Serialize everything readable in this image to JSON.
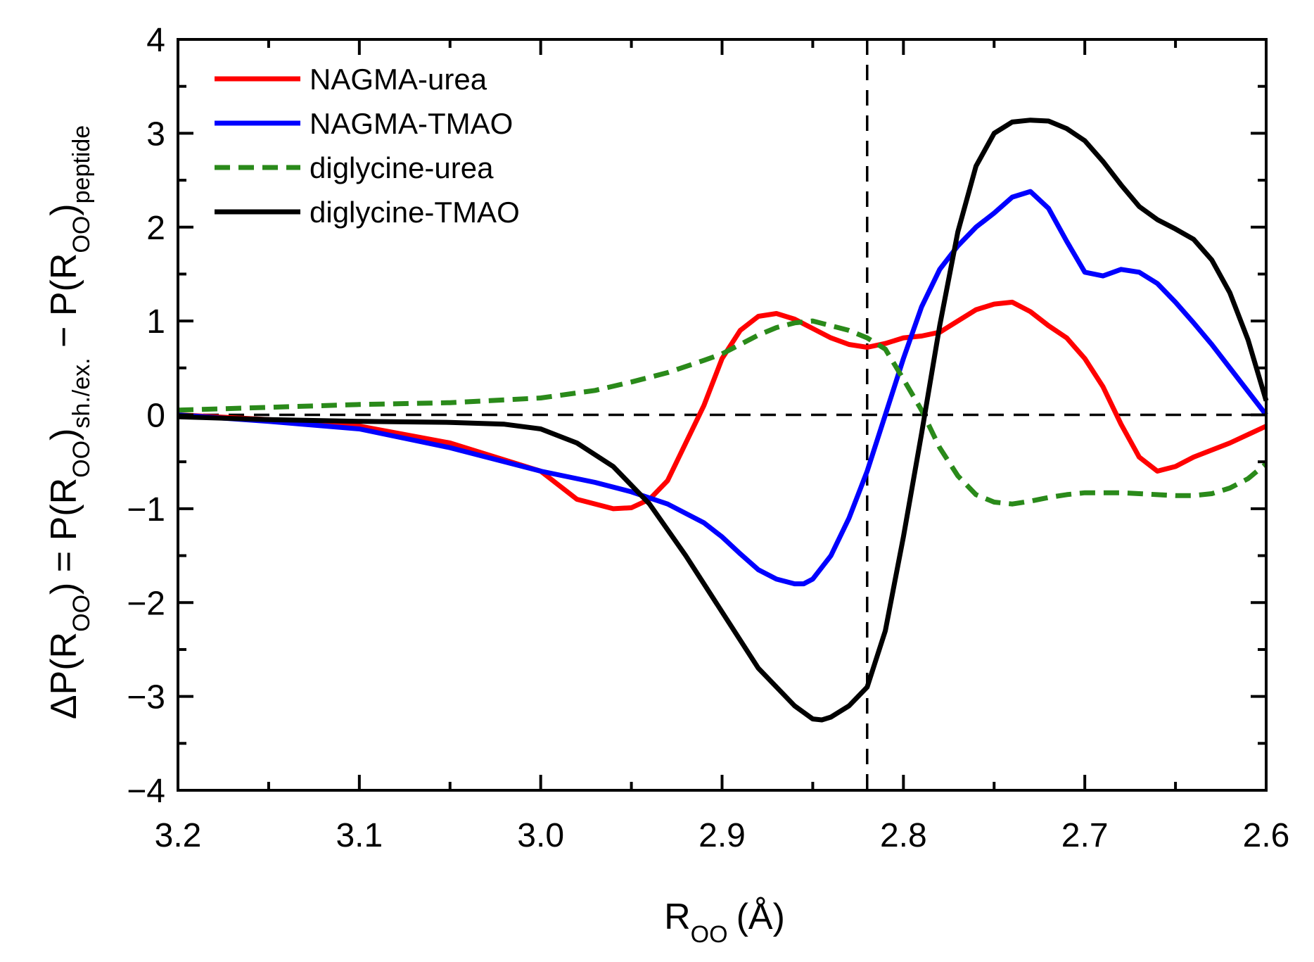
{
  "chart_data": {
    "type": "line",
    "title": "",
    "xlabel": "R",
    "xlabel_sub": "OO",
    "xlabel_unit": "(Å)",
    "ylabel_parts": {
      "lhs": "ΔP(R",
      "lhs_sub": "OO",
      "eq": ") = P(R",
      "mid_sub": "OO",
      "mid_close": ")",
      "mid_sub2": "sh./ex.",
      "minus": " − P(R",
      "rhs_sub": "OO",
      "rhs_close": ")",
      "rhs_sub2": "peptide"
    },
    "x_reversed": true,
    "xlim": [
      3.2,
      2.6
    ],
    "ylim": [
      -4,
      4
    ],
    "x_ticks": [
      3.2,
      3.1,
      3.0,
      2.9,
      2.8,
      2.7,
      2.6
    ],
    "x_tick_labels": [
      "3.2",
      "3.1",
      "3.0",
      "2.9",
      "2.8",
      "2.7",
      "2.6"
    ],
    "y_ticks": [
      -4,
      -3,
      -2,
      -1,
      0,
      1,
      2,
      3,
      4
    ],
    "y_tick_labels": [
      "−4",
      "−3",
      "−2",
      "−1",
      "0",
      "1",
      "2",
      "3",
      "4"
    ],
    "reference_lines": [
      {
        "orientation": "horizontal",
        "value": 0,
        "style": "dashed",
        "color": "#000000"
      },
      {
        "orientation": "vertical",
        "value": 2.82,
        "style": "dashed",
        "color": "#000000"
      }
    ],
    "legend_position": "top-left",
    "series": [
      {
        "name": "NAGMA-urea",
        "color": "#ff0000",
        "dash": "solid",
        "x": [
          3.2,
          3.15,
          3.1,
          3.05,
          3.0,
          2.98,
          2.96,
          2.95,
          2.94,
          2.93,
          2.92,
          2.91,
          2.9,
          2.89,
          2.88,
          2.87,
          2.86,
          2.85,
          2.84,
          2.83,
          2.82,
          2.81,
          2.8,
          2.79,
          2.78,
          2.77,
          2.76,
          2.75,
          2.74,
          2.73,
          2.72,
          2.71,
          2.7,
          2.69,
          2.68,
          2.67,
          2.66,
          2.65,
          2.64,
          2.62,
          2.6
        ],
        "y": [
          0.0,
          -0.05,
          -0.12,
          -0.3,
          -0.6,
          -0.9,
          -1.0,
          -0.99,
          -0.9,
          -0.7,
          -0.3,
          0.1,
          0.6,
          0.9,
          1.05,
          1.08,
          1.02,
          0.92,
          0.82,
          0.75,
          0.72,
          0.76,
          0.82,
          0.84,
          0.88,
          1.0,
          1.12,
          1.18,
          1.2,
          1.1,
          0.95,
          0.82,
          0.6,
          0.3,
          -0.1,
          -0.45,
          -0.6,
          -0.55,
          -0.45,
          -0.3,
          -0.12
        ]
      },
      {
        "name": "NAGMA-TMAO",
        "color": "#0000ff",
        "dash": "solid",
        "x": [
          3.2,
          3.15,
          3.1,
          3.05,
          3.0,
          2.97,
          2.95,
          2.93,
          2.91,
          2.9,
          2.89,
          2.88,
          2.87,
          2.86,
          2.855,
          2.85,
          2.84,
          2.83,
          2.82,
          2.81,
          2.8,
          2.79,
          2.78,
          2.77,
          2.76,
          2.75,
          2.74,
          2.73,
          2.72,
          2.71,
          2.7,
          2.69,
          2.68,
          2.67,
          2.66,
          2.65,
          2.64,
          2.63,
          2.62,
          2.61,
          2.6
        ],
        "y": [
          0.0,
          -0.07,
          -0.15,
          -0.35,
          -0.6,
          -0.72,
          -0.82,
          -0.95,
          -1.15,
          -1.3,
          -1.48,
          -1.65,
          -1.75,
          -1.8,
          -1.8,
          -1.75,
          -1.5,
          -1.1,
          -0.6,
          0.0,
          0.6,
          1.15,
          1.55,
          1.8,
          2.0,
          2.15,
          2.32,
          2.38,
          2.2,
          1.85,
          1.52,
          1.48,
          1.55,
          1.52,
          1.4,
          1.2,
          0.98,
          0.75,
          0.5,
          0.25,
          0.0
        ]
      },
      {
        "name": "diglycine-urea",
        "color": "#2a8a1a",
        "dash": "dashed",
        "x": [
          3.2,
          3.15,
          3.1,
          3.05,
          3.0,
          2.97,
          2.95,
          2.93,
          2.91,
          2.9,
          2.89,
          2.88,
          2.87,
          2.86,
          2.85,
          2.84,
          2.83,
          2.82,
          2.81,
          2.8,
          2.79,
          2.78,
          2.77,
          2.76,
          2.75,
          2.74,
          2.73,
          2.72,
          2.71,
          2.7,
          2.69,
          2.68,
          2.67,
          2.66,
          2.65,
          2.64,
          2.63,
          2.62,
          2.61,
          2.6
        ],
        "y": [
          0.05,
          0.08,
          0.11,
          0.13,
          0.18,
          0.26,
          0.35,
          0.45,
          0.58,
          0.65,
          0.75,
          0.85,
          0.93,
          0.98,
          1.0,
          0.95,
          0.9,
          0.82,
          0.7,
          0.38,
          0.05,
          -0.35,
          -0.65,
          -0.85,
          -0.93,
          -0.95,
          -0.92,
          -0.88,
          -0.85,
          -0.83,
          -0.83,
          -0.83,
          -0.84,
          -0.85,
          -0.86,
          -0.86,
          -0.84,
          -0.78,
          -0.68,
          -0.52
        ]
      },
      {
        "name": "diglycine-TMAO",
        "color": "#000000",
        "dash": "solid",
        "x": [
          3.2,
          3.15,
          3.1,
          3.05,
          3.02,
          3.0,
          2.98,
          2.96,
          2.94,
          2.92,
          2.9,
          2.88,
          2.86,
          2.85,
          2.845,
          2.84,
          2.83,
          2.82,
          2.81,
          2.8,
          2.79,
          2.78,
          2.77,
          2.76,
          2.75,
          2.74,
          2.73,
          2.72,
          2.71,
          2.7,
          2.69,
          2.68,
          2.67,
          2.66,
          2.65,
          2.64,
          2.63,
          2.62,
          2.61,
          2.6
        ],
        "y": [
          -0.02,
          -0.05,
          -0.07,
          -0.08,
          -0.1,
          -0.15,
          -0.3,
          -0.55,
          -0.95,
          -1.5,
          -2.1,
          -2.7,
          -3.1,
          -3.24,
          -3.25,
          -3.22,
          -3.1,
          -2.9,
          -2.3,
          -1.3,
          -0.2,
          0.95,
          1.95,
          2.65,
          3.0,
          3.12,
          3.14,
          3.13,
          3.05,
          2.92,
          2.7,
          2.45,
          2.22,
          2.08,
          1.98,
          1.87,
          1.65,
          1.3,
          0.8,
          0.15
        ]
      }
    ]
  }
}
